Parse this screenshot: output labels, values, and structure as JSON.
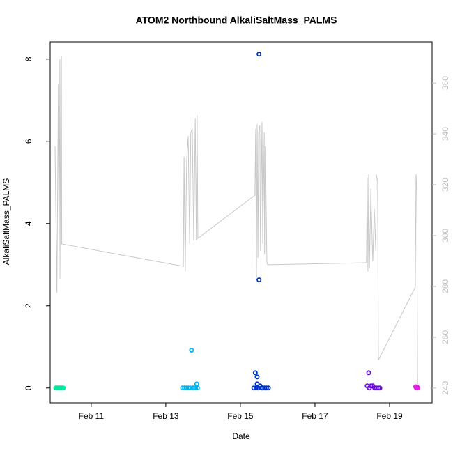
{
  "chart_data": {
    "type": "scatter",
    "title": "ATOM2 Northbound AlkaliSaltMass_PALMS",
    "x_label": "Date",
    "y_label": "AlkaliSaltMass_PALMS",
    "xlim": [
      9.9,
      20.14
    ],
    "xticks": [
      {
        "value": 11,
        "label": "Feb 11"
      },
      {
        "value": 13,
        "label": "Feb 13"
      },
      {
        "value": 15,
        "label": "Feb 15"
      },
      {
        "value": 17,
        "label": "Feb 17"
      },
      {
        "value": 19,
        "label": "Feb 19"
      }
    ],
    "ylim": [
      -0.36,
      8.42
    ],
    "yticks": [
      0,
      2,
      4,
      6,
      8
    ],
    "y2lim": [
      234.2,
      376.2
    ],
    "y2ticks": [
      240,
      260,
      280,
      300,
      320,
      340,
      360
    ],
    "y2_color": "#c0c0c0",
    "series": [
      {
        "color": "#00e8a0",
        "x": [
          10.05,
          10.08,
          10.11,
          10.14,
          10.17,
          10.2,
          10.23,
          10.25
        ],
        "values": [
          0,
          0,
          0,
          0,
          0,
          0,
          0,
          0
        ]
      },
      {
        "color": "#00b4ee",
        "x": [
          13.45,
          13.5,
          13.55,
          13.6,
          13.65,
          13.69,
          13.72,
          13.76,
          13.8,
          13.83,
          13.85
        ],
        "values": [
          0,
          0,
          0,
          0,
          0,
          0.92,
          0,
          0,
          0,
          0.1,
          0
        ]
      },
      {
        "color": "#0034c8",
        "x": [
          15.36,
          15.4,
          15.42,
          15.45,
          15.45,
          15.48,
          15.5,
          15.5,
          15.53,
          15.57,
          15.6,
          15.65,
          15.7,
          15.75
        ],
        "values": [
          0,
          0.37,
          0,
          0.27,
          0.1,
          0,
          8.12,
          2.63,
          0.05,
          0,
          0,
          0,
          0,
          0
        ]
      },
      {
        "color": "#6a10e0",
        "x": [
          18.4,
          18.44,
          18.46,
          18.5,
          18.55,
          18.6,
          18.65,
          18.7,
          18.74
        ],
        "values": [
          0.05,
          0.37,
          0,
          0.05,
          0.05,
          0,
          0,
          0,
          0
        ]
      },
      {
        "color": "#e020e0",
        "x": [
          19.7,
          19.72,
          19.74,
          19.76
        ],
        "values": [
          0.03,
          0,
          0.02,
          0
        ]
      },
      {
        "type": "line",
        "axis": "y2",
        "color": "#c8c8c8",
        "x": [
          10.03,
          10.08,
          10.12,
          10.14,
          10.16,
          10.18,
          10.2,
          10.21,
          13.47,
          13.49,
          13.52,
          13.56,
          13.6,
          13.64,
          13.67,
          13.71,
          13.75,
          13.79,
          13.82,
          13.84,
          13.86,
          15.39,
          15.41,
          15.43,
          15.45,
          15.47,
          15.49,
          15.52,
          15.54,
          15.58,
          15.6,
          15.64,
          15.65,
          15.67,
          15.71,
          15.73,
          15.75,
          18.38,
          18.4,
          18.42,
          18.44,
          18.46,
          18.5,
          18.51,
          18.55,
          18.59,
          18.63,
          18.64,
          18.68,
          18.7,
          19.69,
          19.71,
          19.73,
          19.75
        ],
        "values": [
          335.1,
          277.5,
          359.7,
          283.0,
          369.3,
          283.0,
          370.7,
          296.7,
          287.9,
          331.0,
          285.8,
          329.6,
          339.2,
          296.7,
          340.5,
          341.9,
          298.1,
          346.0,
          298.1,
          347.4,
          298.9,
          315.9,
          341.9,
          283.0,
          343.8,
          291.2,
          340.5,
          343.3,
          294.0,
          344.7,
          296.7,
          340.5,
          292.6,
          335.1,
          289.9,
          288.5,
          288.5,
          289.3,
          322.7,
          285.8,
          324.1,
          287.1,
          318.6,
          310.4,
          289.9,
          310.4,
          294.0,
          324.1,
          321.4,
          251.0,
          279.7,
          324.1,
          318.6,
          240.5
        ]
      }
    ]
  }
}
